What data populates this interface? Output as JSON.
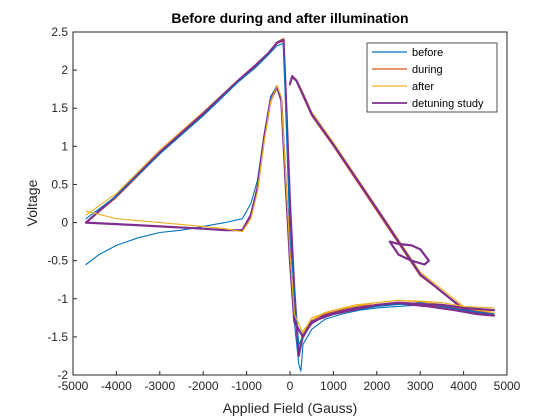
{
  "chart_data": {
    "type": "line",
    "title": "Before during and after illumination",
    "xlabel": "Applied Field (Gauss)",
    "ylabel": "Voltage",
    "xlim": [
      -5000,
      5000
    ],
    "ylim": [
      -2,
      2.5
    ],
    "xticks": [
      -5000,
      -4000,
      -3000,
      -2000,
      -1000,
      0,
      1000,
      2000,
      3000,
      4000,
      5000
    ],
    "yticks": [
      -2,
      -1.5,
      -1,
      -0.5,
      0,
      0.5,
      1,
      1.5,
      2,
      2.5
    ],
    "grid": false,
    "legend_position": "top-right",
    "series": [
      {
        "name": "before",
        "color": "#0072BD",
        "x": [
          -4700,
          -4400,
          -4000,
          -3500,
          -3000,
          -2500,
          -2000,
          -1500,
          -1100,
          -900,
          -750,
          -600,
          -450,
          -300,
          -200,
          -100,
          0,
          100,
          200,
          250,
          300,
          500,
          800,
          1200,
          1600,
          2000,
          2500,
          3000,
          3500,
          4000,
          4700
        ],
        "y": [
          -0.55,
          -0.42,
          -0.3,
          -0.2,
          -0.13,
          -0.1,
          -0.05,
          0.0,
          0.05,
          0.25,
          0.55,
          1.15,
          1.65,
          1.8,
          1.6,
          0.6,
          -0.4,
          -1.3,
          -1.85,
          -1.95,
          -1.6,
          -1.4,
          -1.27,
          -1.2,
          -1.15,
          -1.12,
          -1.1,
          -1.08,
          -1.1,
          -1.15,
          -1.2
        ]
      },
      {
        "name": "during",
        "color": "#D95319",
        "x": [
          -4700,
          -4000,
          -3000,
          -2000,
          -1200,
          -800,
          -500,
          -300,
          -150,
          -80,
          0,
          100,
          200,
          300,
          500,
          800,
          1500,
          2500,
          3200,
          3800,
          4300,
          4700,
          4000,
          3000,
          2000,
          1000,
          500,
          300,
          150,
          50,
          0
        ],
        "y": [
          0.0,
          0.33,
          0.9,
          1.42,
          1.85,
          2.05,
          2.22,
          2.35,
          2.38,
          1.4,
          0.2,
          -0.9,
          -1.7,
          -1.45,
          -1.3,
          -1.2,
          -1.1,
          -1.05,
          -1.08,
          -1.12,
          -1.18,
          -1.2,
          -1.12,
          -0.7,
          0.15,
          1.0,
          1.4,
          1.65,
          1.85,
          1.9,
          1.8
        ]
      },
      {
        "name": "after",
        "color": "#EDB120",
        "x": [
          -4700,
          -4000,
          -3000,
          -2000,
          -1200,
          -800,
          -500,
          -300,
          -150,
          -80,
          0,
          100,
          200,
          300,
          500,
          800,
          1500,
          2500,
          3200,
          3800,
          4300,
          4700,
          4000,
          3000,
          2000,
          1000,
          500,
          300,
          150,
          50,
          0
        ],
        "y": [
          0.1,
          0.38,
          0.95,
          1.45,
          1.87,
          2.07,
          2.23,
          2.37,
          2.42,
          1.5,
          0.3,
          -0.85,
          -1.65,
          -1.42,
          -1.28,
          -1.18,
          -1.08,
          -1.02,
          -1.05,
          -1.1,
          -1.15,
          -1.18,
          -1.1,
          -0.65,
          0.2,
          1.05,
          1.45,
          1.7,
          1.88,
          1.92,
          1.82
        ]
      },
      {
        "name": "detuning study",
        "color": "#7E2F8E",
        "x": [
          -4700,
          -4000,
          -3000,
          -2000,
          -1200,
          -800,
          -500,
          -300,
          -150,
          -80,
          0,
          100,
          200,
          300,
          500,
          800,
          1500,
          2500,
          3200,
          3800,
          4300,
          4700,
          4000,
          3000,
          2000,
          1000,
          500,
          300,
          150,
          50,
          0
        ],
        "y": [
          0.0,
          0.35,
          0.92,
          1.43,
          1.86,
          2.06,
          2.22,
          2.36,
          2.4,
          1.45,
          0.25,
          -0.88,
          -1.75,
          -1.48,
          -1.32,
          -1.22,
          -1.12,
          -1.06,
          -1.1,
          -1.15,
          -1.2,
          -1.22,
          -1.14,
          -0.68,
          0.18,
          1.02,
          1.42,
          1.68,
          1.86,
          1.92,
          1.82
        ]
      },
      {
        "name": "",
        "color": "#0072BD",
        "x": [
          -4700,
          -4000,
          -3000,
          -2000,
          -1200,
          -800,
          -500,
          -300,
          -150,
          0,
          200,
          500,
          1000,
          2000,
          3000,
          4000,
          4700
        ],
        "y": [
          0.05,
          0.35,
          0.9,
          1.4,
          1.84,
          2.03,
          2.2,
          2.32,
          2.35,
          -0.2,
          -1.6,
          -1.3,
          -1.2,
          -1.1,
          -1.05,
          -1.15,
          -1.2
        ]
      },
      {
        "name": "",
        "color": "#7E2F8E",
        "x": [
          -4700,
          -4000,
          -3000,
          -2000,
          -1500,
          -1100,
          -900,
          -750,
          -600,
          -450,
          -300,
          -200,
          -100,
          0,
          100,
          300,
          500,
          1000,
          2000,
          2500,
          3000,
          3500,
          4000,
          4700
        ],
        "y": [
          0.0,
          -0.02,
          -0.05,
          -0.08,
          -0.1,
          -0.1,
          0.1,
          0.45,
          1.1,
          1.6,
          1.78,
          1.6,
          0.5,
          -0.5,
          -1.3,
          -1.5,
          -1.3,
          -1.2,
          -1.08,
          -1.05,
          -1.07,
          -1.08,
          -1.12,
          -1.15
        ]
      },
      {
        "name": "",
        "color": "#EDB120",
        "x": [
          -4700,
          -4000,
          -3000,
          -2000,
          -1500,
          -1100,
          -900,
          -750,
          -600,
          -450,
          -300,
          -200,
          -100,
          0,
          100,
          300,
          500,
          1000,
          2000,
          2500,
          3000,
          3500,
          4000,
          4700
        ],
        "y": [
          0.15,
          0.05,
          0.0,
          -0.05,
          -0.08,
          -0.12,
          0.05,
          0.4,
          1.05,
          1.58,
          1.8,
          1.65,
          0.6,
          -0.4,
          -1.2,
          -1.45,
          -1.25,
          -1.15,
          -1.05,
          -1.02,
          -1.03,
          -1.05,
          -1.1,
          -1.12
        ]
      },
      {
        "name": "",
        "color": "#7E2F8E",
        "x": [
          2300,
          2500,
          2800,
          3000,
          3200,
          3100,
          2800,
          2500,
          2300
        ],
        "y": [
          -0.25,
          -0.28,
          -0.3,
          -0.35,
          -0.5,
          -0.55,
          -0.5,
          -0.42,
          -0.25
        ]
      }
    ]
  }
}
